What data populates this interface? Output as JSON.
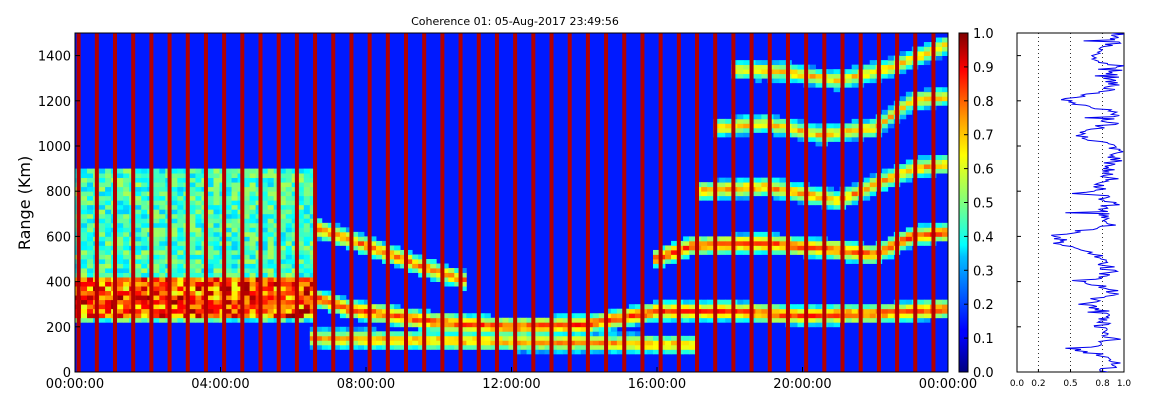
{
  "chart_data": [
    {
      "type": "heatmap",
      "title": "Coherence 01: 05-Aug-2017 23:49:56",
      "ylabel": "Range (Km)",
      "xlabel": "",
      "x_ticks": [
        "00:00:00",
        "04:00:00",
        "08:00:00",
        "12:00:00",
        "16:00:00",
        "20:00:00",
        "00:00:00"
      ],
      "x_range_hours": [
        0,
        24
      ],
      "y_ticks": [
        0,
        200,
        400,
        600,
        800,
        1000,
        1200,
        1400
      ],
      "ylim": [
        0,
        1500
      ],
      "colormap": "jet",
      "colorbar": {
        "range": [
          0.0,
          1.0
        ],
        "ticks": [
          "0.0",
          "0.1",
          "0.2",
          "0.3",
          "0.4",
          "0.5",
          "0.6",
          "0.7",
          "0.8",
          "0.9",
          "1.0"
        ]
      },
      "background_level": 0.15,
      "vertical_stripe_level": 0.95,
      "stripe_times_hours": [
        0.1,
        0.6,
        1.1,
        1.6,
        2.1,
        2.6,
        3.1,
        3.6,
        4.1,
        4.6,
        5.1,
        5.6,
        6.1,
        6.6,
        7.1,
        7.6,
        8.1,
        8.6,
        9.1,
        9.6,
        10.1,
        10.6,
        11.1,
        11.6,
        12.1,
        12.6,
        13.1,
        13.6,
        14.1,
        14.6,
        15.1,
        15.6,
        16.1,
        16.6,
        17.1,
        17.6,
        18.1,
        18.6,
        19.1,
        19.6,
        20.1,
        20.6,
        21.1,
        21.6,
        22.1,
        22.6,
        23.1,
        23.6
      ],
      "layers": [
        {
          "name": "low-layer",
          "points": [
            [
              0,
              320
            ],
            [
              2,
              310
            ],
            [
              4,
              300
            ],
            [
              6,
              300
            ],
            [
              6.6,
              330
            ],
            [
              7.5,
              280
            ],
            [
              10,
              220
            ],
            [
              12,
              200
            ],
            [
              14,
              210
            ],
            [
              16,
              270
            ],
            [
              18,
              270
            ],
            [
              20,
              250
            ],
            [
              22,
              260
            ],
            [
              24,
              280
            ]
          ],
          "level": 0.85
        },
        {
          "name": "lower-band",
          "points": [
            [
              6.5,
              150
            ],
            [
              10,
              140
            ],
            [
              14,
              130
            ],
            [
              17,
              120
            ]
          ],
          "level": 0.75
        },
        {
          "name": "rising-layer",
          "points": [
            [
              6.6,
              640
            ],
            [
              8,
              560
            ],
            [
              9.5,
              470
            ],
            [
              10.8,
              400
            ]
          ],
          "level": 0.8
        },
        {
          "name": "evening-layer-1",
          "points": [
            [
              15.9,
              500
            ],
            [
              17,
              560
            ],
            [
              19,
              570
            ],
            [
              21,
              540
            ],
            [
              22,
              520
            ],
            [
              23,
              600
            ],
            [
              24,
              620
            ]
          ],
          "level": 0.85
        },
        {
          "name": "evening-layer-2",
          "points": [
            [
              17,
              800
            ],
            [
              19,
              820
            ],
            [
              21,
              760
            ],
            [
              23,
              900
            ],
            [
              24,
              920
            ]
          ],
          "level": 0.75
        },
        {
          "name": "evening-layer-3",
          "points": [
            [
              17.5,
              1080
            ],
            [
              19,
              1100
            ],
            [
              20.5,
              1050
            ],
            [
              22,
              1080
            ],
            [
              23,
              1200
            ],
            [
              24,
              1220
            ]
          ],
          "level": 0.7
        },
        {
          "name": "evening-layer-4",
          "points": [
            [
              18,
              1340
            ],
            [
              19.5,
              1330
            ],
            [
              21,
              1290
            ],
            [
              22.5,
              1350
            ],
            [
              24,
              1450
            ]
          ],
          "level": 0.7
        }
      ],
      "diffuse_regions": [
        {
          "name": "morning-echo",
          "t": [
            0,
            6.6
          ],
          "r": [
            220,
            900
          ],
          "level": 0.5
        },
        {
          "name": "morning-core",
          "t": [
            0,
            6.6
          ],
          "r": [
            250,
            420
          ],
          "level": 0.9
        }
      ]
    },
    {
      "type": "line",
      "xlim": [
        0.0,
        1.0
      ],
      "x_ticks": [
        "0.0",
        "0.2",
        "0.5",
        "0.8",
        "1.0"
      ],
      "ylim": [
        0,
        1500
      ],
      "grid_lines_x": [
        0.2,
        0.5,
        0.8
      ],
      "series": [
        {
          "color": "#0000ee",
          "range_km": [
            0,
            50,
            100,
            150,
            200,
            250,
            300,
            350,
            400,
            450,
            500,
            550,
            600,
            650,
            700,
            750,
            800,
            850,
            900,
            950,
            1000,
            1050,
            1100,
            1150,
            1200,
            1250,
            1300,
            1350,
            1400,
            1450,
            1500
          ],
          "values": [
            0.85,
            0.9,
            0.6,
            0.92,
            0.75,
            0.88,
            0.62,
            0.9,
            0.7,
            0.87,
            0.8,
            0.55,
            0.32,
            0.86,
            0.78,
            0.9,
            0.72,
            0.88,
            0.84,
            0.92,
            0.9,
            0.6,
            0.86,
            0.93,
            0.45,
            0.9,
            0.88,
            0.94,
            0.65,
            0.9,
            0.92
          ]
        }
      ]
    }
  ],
  "colors": {
    "axis": "#000000",
    "trace": "#0000ee"
  }
}
